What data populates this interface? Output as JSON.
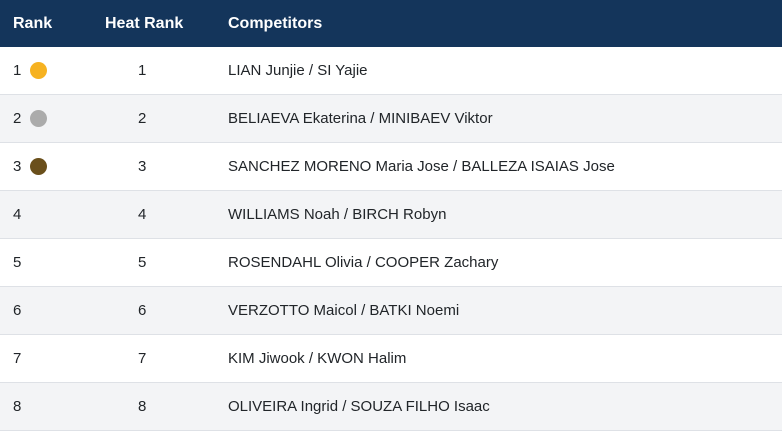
{
  "table": {
    "columns": [
      "Rank",
      "Heat Rank",
      "Competitors"
    ],
    "rows": [
      {
        "rank": "1",
        "medal": "gold",
        "heat_rank": "1",
        "competitors": "LIAN Junjie / SI Yajie"
      },
      {
        "rank": "2",
        "medal": "silver",
        "heat_rank": "2",
        "competitors": "BELIAEVA Ekaterina / MINIBAEV Viktor"
      },
      {
        "rank": "3",
        "medal": "bronze",
        "heat_rank": "3",
        "competitors": "SANCHEZ MORENO Maria Jose / BALLEZA ISAIAS Jose"
      },
      {
        "rank": "4",
        "medal": null,
        "heat_rank": "4",
        "competitors": "WILLIAMS Noah / BIRCH Robyn"
      },
      {
        "rank": "5",
        "medal": null,
        "heat_rank": "5",
        "competitors": "ROSENDAHL Olivia / COOPER Zachary"
      },
      {
        "rank": "6",
        "medal": null,
        "heat_rank": "6",
        "competitors": "VERZOTTO Maicol / BATKI Noemi"
      },
      {
        "rank": "7",
        "medal": null,
        "heat_rank": "7",
        "competitors": "KIM Jiwook / KWON Halim"
      },
      {
        "rank": "8",
        "medal": null,
        "heat_rank": "8",
        "competitors": "OLIVEIRA Ingrid / SOUZA FILHO Isaac"
      }
    ]
  },
  "colors": {
    "header_bg": "#14355B",
    "header_text": "#FFFFFF",
    "row_text": "#212529",
    "row_alt_bg": "#F3F4F6",
    "row_border": "#DEE1E6",
    "medal_gold": "#F6B221",
    "medal_silver": "#ABABAB",
    "medal_bronze": "#6A4F1B"
  }
}
